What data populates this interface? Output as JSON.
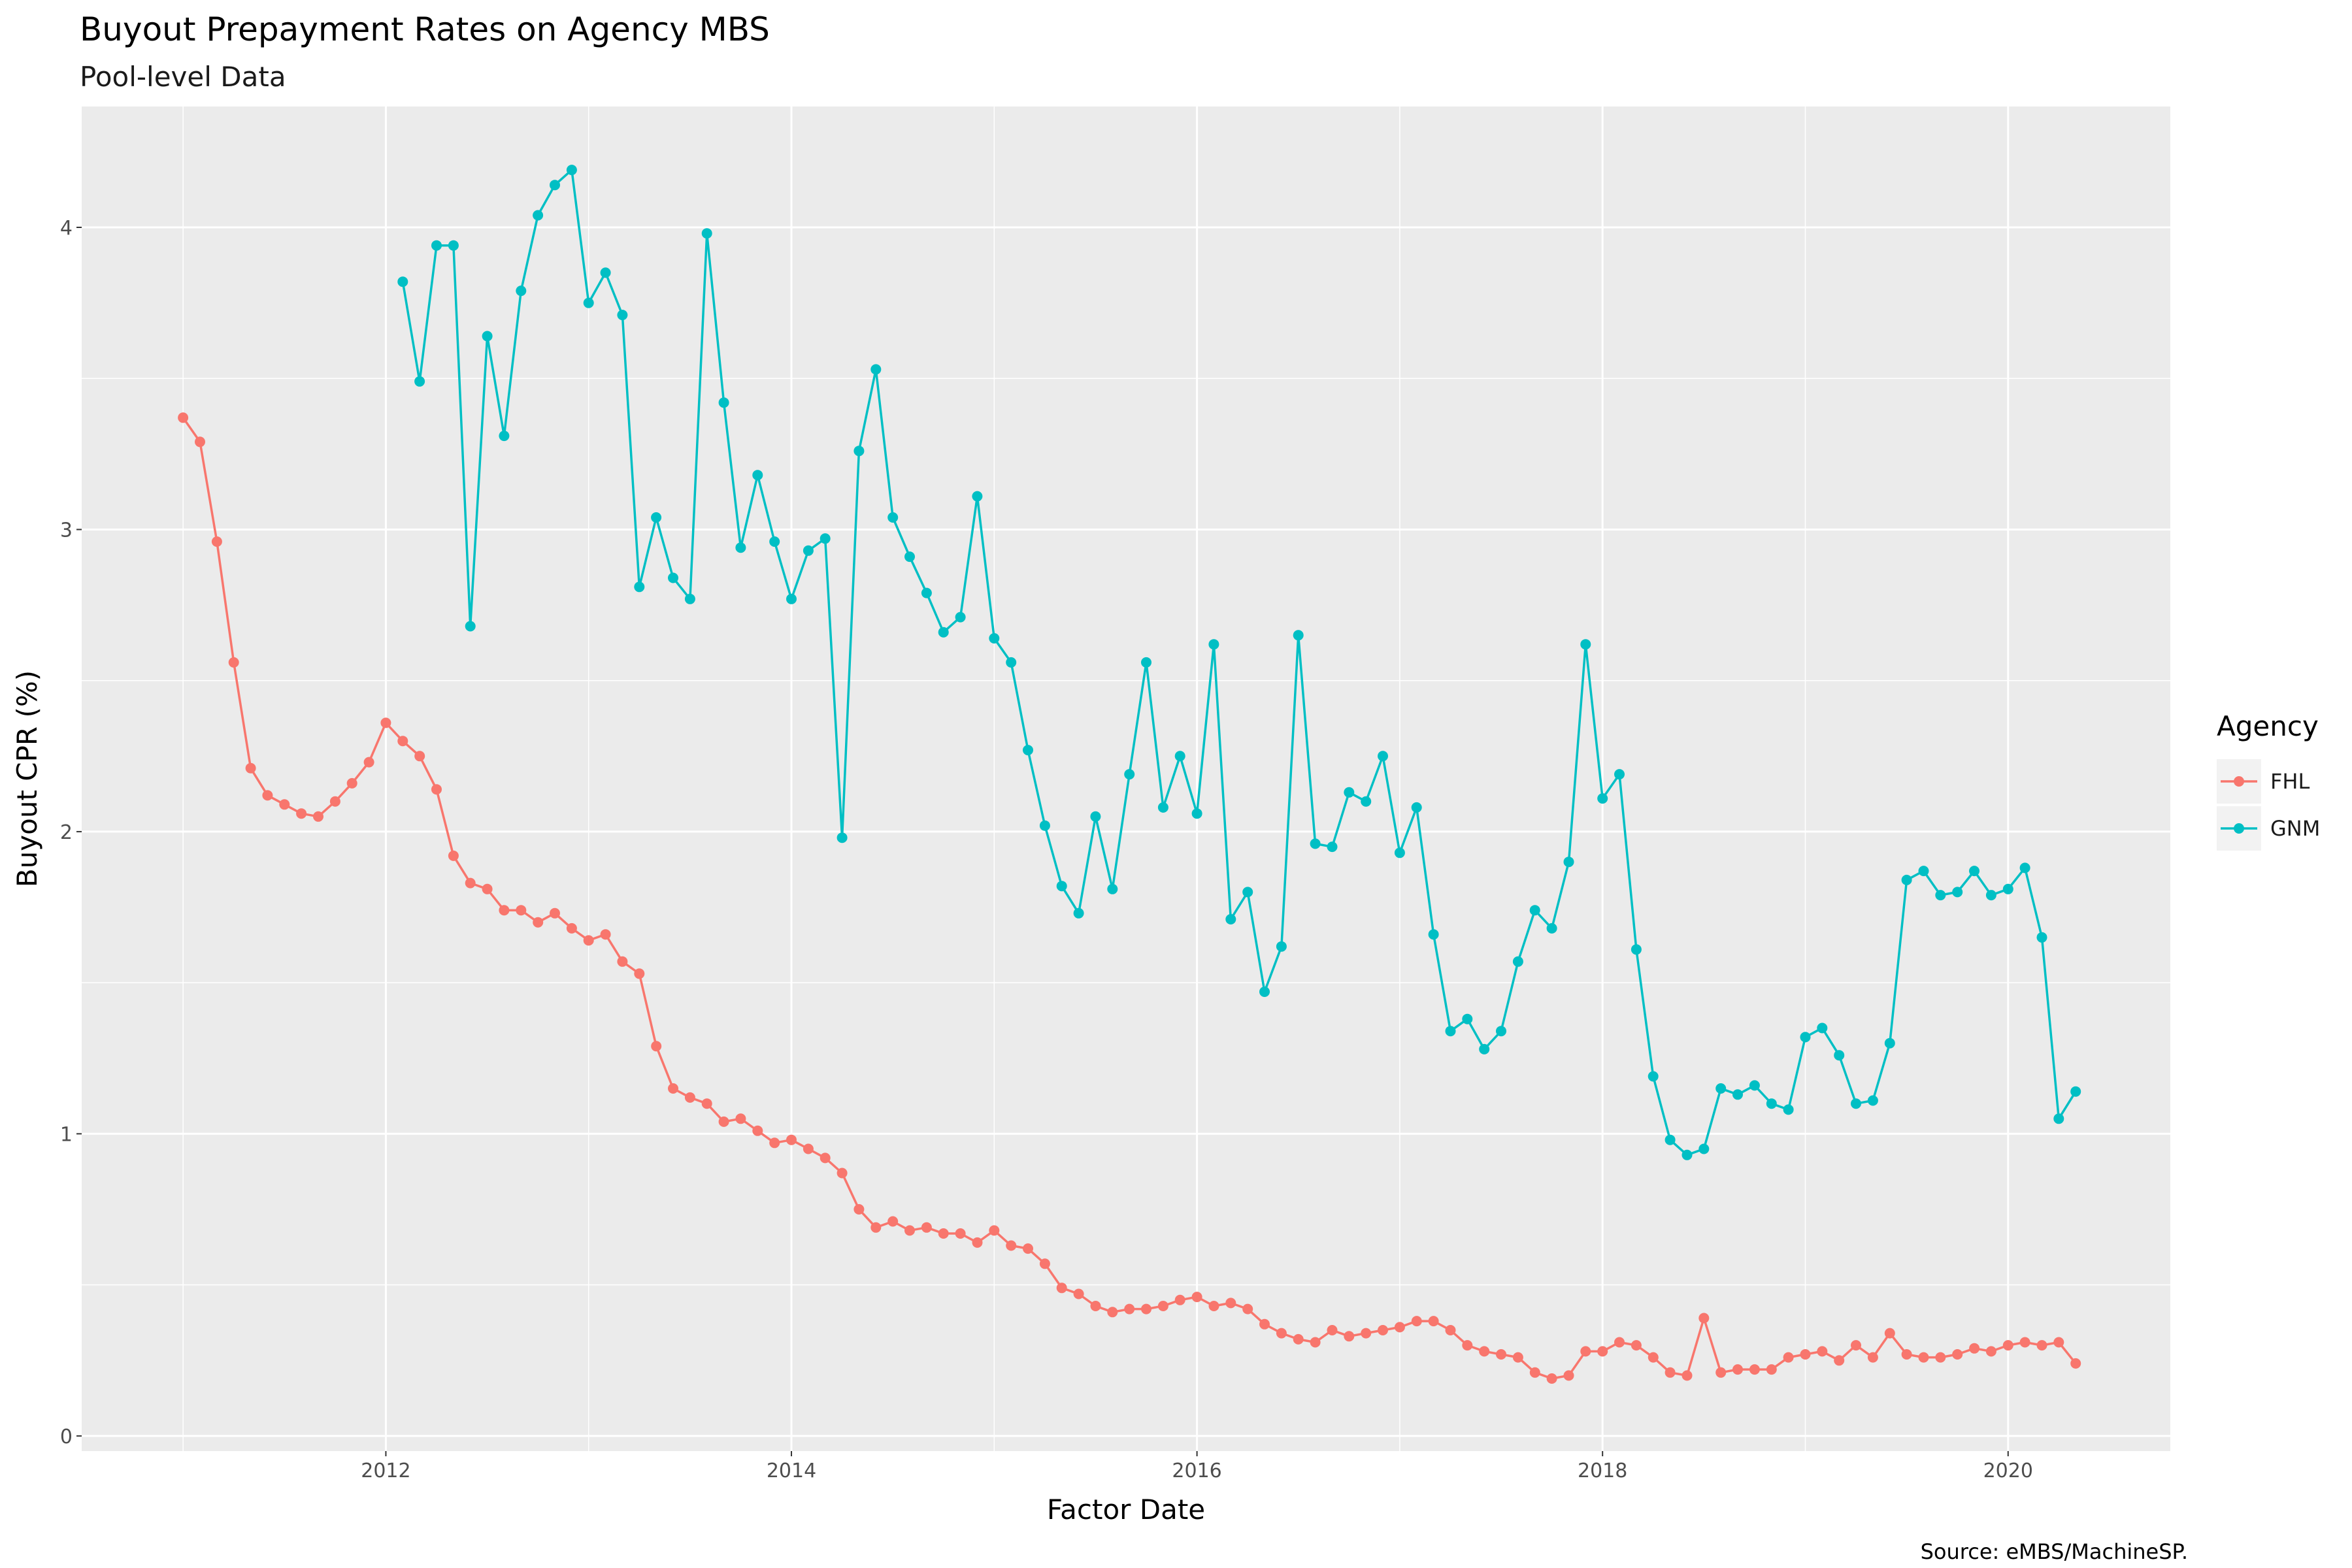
{
  "chart_data": {
    "type": "line",
    "title": "Buyout Prepayment Rates on Agency MBS",
    "subtitle": "Pool-level Data",
    "xlabel": "Factor Date",
    "ylabel": "Buyout CPR (%)",
    "caption": "Source: eMBS/MachineSP.",
    "xlim": [
      2010.5,
      2020.8
    ],
    "ylim": [
      -0.05,
      4.4
    ],
    "x_ticks": [
      2012,
      2014,
      2016,
      2018,
      2020
    ],
    "x_tick_labels": [
      "2012",
      "2014",
      "2016",
      "2018",
      "2020"
    ],
    "y_ticks": [
      0,
      1,
      2,
      3,
      4
    ],
    "y_tick_labels": [
      "0",
      "1",
      "2",
      "3",
      "4"
    ],
    "grid": true,
    "background": "#ebebeb",
    "legend": {
      "title": "Agency",
      "position": "right"
    },
    "series": [
      {
        "name": "FHL",
        "color": "#f8766d",
        "start": 2011.0,
        "step_months": 1,
        "values": [
          3.37,
          3.29,
          2.96,
          2.56,
          2.21,
          2.12,
          2.09,
          2.06,
          2.05,
          2.1,
          2.16,
          2.23,
          2.36,
          2.3,
          2.25,
          2.14,
          1.92,
          1.83,
          1.81,
          1.74,
          1.74,
          1.7,
          1.73,
          1.68,
          1.64,
          1.66,
          1.57,
          1.53,
          1.29,
          1.15,
          1.12,
          1.1,
          1.04,
          1.05,
          1.01,
          0.97,
          0.98,
          0.95,
          0.92,
          0.87,
          0.75,
          0.69,
          0.71,
          0.68,
          0.69,
          0.67,
          0.67,
          0.64,
          0.68,
          0.63,
          0.62,
          0.57,
          0.49,
          0.47,
          0.43,
          0.41,
          0.42,
          0.42,
          0.43,
          0.45,
          0.46,
          0.43,
          0.44,
          0.42,
          0.37,
          0.34,
          0.32,
          0.31,
          0.35,
          0.33,
          0.34,
          0.35,
          0.36,
          0.38,
          0.38,
          0.35,
          0.3,
          0.28,
          0.27,
          0.26,
          0.21,
          0.19,
          0.2,
          0.28,
          0.28,
          0.31,
          0.3,
          0.26,
          0.21,
          0.2,
          0.39,
          0.21,
          0.22,
          0.22,
          0.22,
          0.26,
          0.27,
          0.28,
          0.25,
          0.3,
          0.26,
          0.34,
          0.27,
          0.26,
          0.26,
          0.27,
          0.29,
          0.28,
          0.3,
          0.31,
          0.3,
          0.31,
          0.24
        ]
      },
      {
        "name": "GNM",
        "color": "#00bfc4",
        "start": 2012.0833,
        "step_months": 1,
        "values": [
          3.82,
          3.49,
          3.94,
          3.94,
          2.68,
          3.64,
          3.31,
          3.79,
          4.04,
          4.14,
          4.19,
          3.75,
          3.85,
          3.71,
          2.81,
          3.04,
          2.84,
          2.77,
          3.98,
          3.42,
          2.94,
          3.18,
          2.96,
          2.77,
          2.93,
          2.97,
          1.98,
          3.26,
          3.53,
          3.04,
          2.91,
          2.79,
          2.66,
          2.71,
          3.11,
          2.64,
          2.56,
          2.27,
          2.02,
          1.82,
          1.73,
          2.05,
          1.81,
          2.19,
          2.56,
          2.08,
          2.25,
          2.06,
          2.62,
          1.71,
          1.8,
          1.47,
          1.62,
          2.65,
          1.96,
          1.95,
          2.13,
          2.1,
          2.25,
          1.93,
          2.08,
          1.66,
          1.34,
          1.38,
          1.28,
          1.34,
          1.57,
          1.74,
          1.68,
          1.9,
          2.62,
          2.11,
          2.19,
          1.61,
          1.19,
          0.98,
          0.93,
          0.95,
          1.15,
          1.13,
          1.16,
          1.1,
          1.08,
          1.32,
          1.35,
          1.26,
          1.1,
          1.11,
          1.3,
          1.84,
          1.87,
          1.79,
          1.8,
          1.87,
          1.79,
          1.81,
          1.88,
          1.65,
          1.05,
          1.14
        ]
      }
    ]
  }
}
